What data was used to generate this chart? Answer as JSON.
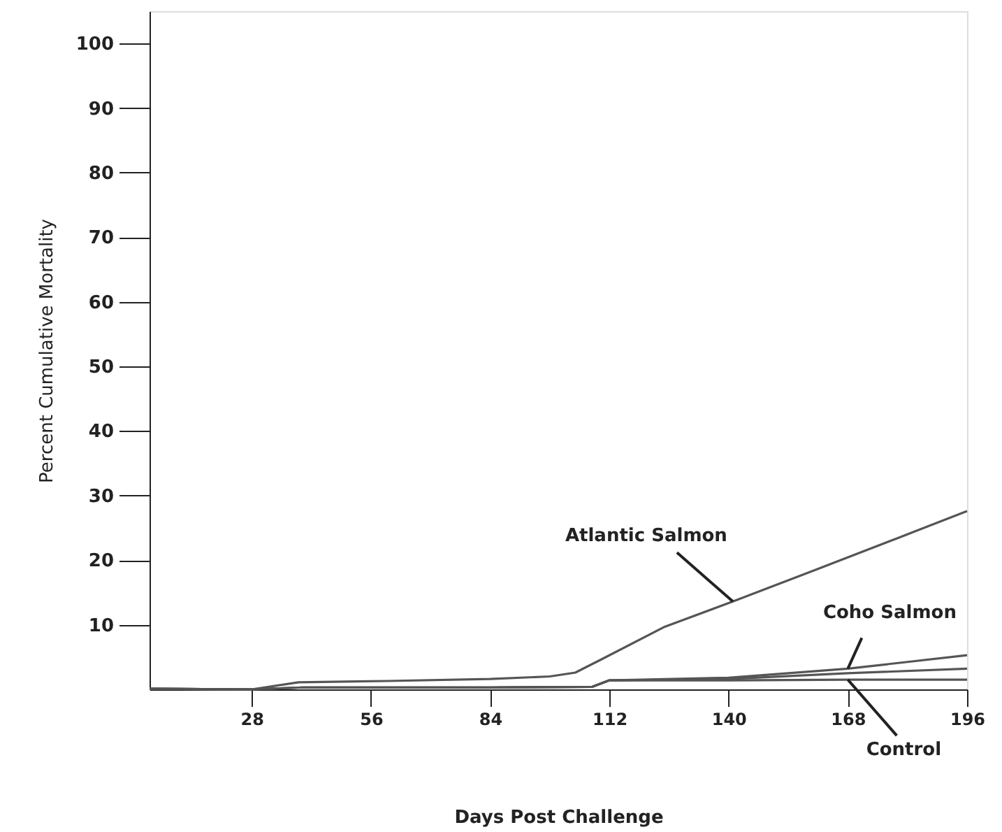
{
  "chart_data": {
    "type": "line",
    "xlabel": "Days Post Challenge",
    "ylabel": "Percent Cumulative Mortality",
    "xlim": [
      4,
      196
    ],
    "ylim": [
      0,
      105
    ],
    "xticks": [
      28,
      56,
      84,
      112,
      140,
      168,
      196
    ],
    "yticks": [
      10,
      20,
      30,
      40,
      50,
      60,
      70,
      80,
      90,
      100
    ],
    "grid": false,
    "marker": "none",
    "line_style": "solid",
    "series": [
      {
        "name": "Atlantic Salmon",
        "color": "#555555",
        "x": [
          4,
          28,
          39,
          60,
          84,
          98,
          104,
          110,
          125,
          141,
          160,
          180,
          196
        ],
        "values": [
          0.1,
          0,
          1.1,
          1.3,
          1.6,
          2,
          2.6,
          4.6,
          9.7,
          13.6,
          18.4,
          23.5,
          27.6
        ]
      },
      {
        "name": "Coho Salmon",
        "color": "#555555",
        "x": [
          4,
          28,
          40,
          84,
          108,
          112,
          140,
          168,
          196
        ],
        "values": [
          0.1,
          0,
          0.3,
          0.3,
          0.4,
          1.4,
          1.8,
          3.2,
          5.3
        ]
      },
      {
        "color": "#555555",
        "x": [
          4,
          28,
          40,
          84,
          108,
          112,
          140,
          168,
          196
        ],
        "values": [
          0.1,
          0,
          0.3,
          0.3,
          0.4,
          1.4,
          1.6,
          2.5,
          3.2
        ]
      },
      {
        "name": "Control",
        "color": "#555555",
        "x": [
          4,
          28,
          40,
          84,
          108,
          112,
          140,
          168,
          196
        ],
        "values": [
          0.1,
          0,
          0.3,
          0.3,
          0.4,
          1.4,
          1.4,
          1.5,
          1.5
        ]
      }
    ]
  }
}
